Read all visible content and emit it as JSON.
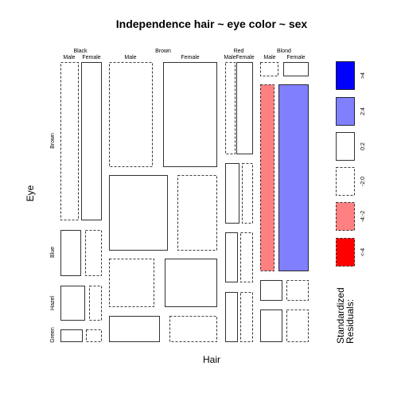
{
  "chart_data": {
    "type": "mosaic",
    "title": "Independence hair ~ eye color ~ sex",
    "xlabel": "Hair",
    "ylabel": "Eye",
    "hair_levels": [
      "Black",
      "Brown",
      "Red",
      "Blond"
    ],
    "sex_levels": [
      "Male",
      "Female"
    ],
    "eye_levels": [
      "Brown",
      "Blue",
      "Hazel",
      "Green"
    ],
    "residual_categories": [
      "<-4",
      "-4:-2",
      "-2:0",
      "0:2",
      "2:4",
      ">4"
    ],
    "residual_fills": {
      "<-4": "#ff0000",
      "-4:-2": "#ff8080",
      "-2:0": "#ffffff",
      "0:2": "#ffffff",
      "2:4": "#8080ff",
      ">4": "#0000ff"
    },
    "residual_dashed": {
      "<-4": true,
      "-4:-2": true,
      "-2:0": true,
      "0:2": false,
      "2:4": false,
      ">4": false
    },
    "legend": {
      "title_line1": "Standardized",
      "title_line2": "Residuals:",
      "ticks": [
        "<-4",
        "-4:-2",
        "-2:0",
        "0:2",
        "2:4",
        ">4"
      ],
      "placement": "right"
    },
    "cells": [
      {
        "hair": "Black",
        "sex": "Male",
        "eye": "Brown",
        "residual": "-2:0"
      },
      {
        "hair": "Black",
        "sex": "Female",
        "eye": "Brown",
        "residual": "0:2"
      },
      {
        "hair": "Black",
        "sex": "Male",
        "eye": "Blue",
        "residual": "0:2"
      },
      {
        "hair": "Black",
        "sex": "Female",
        "eye": "Blue",
        "residual": "-2:0"
      },
      {
        "hair": "Black",
        "sex": "Male",
        "eye": "Hazel",
        "residual": "0:2"
      },
      {
        "hair": "Black",
        "sex": "Female",
        "eye": "Hazel",
        "residual": "-2:0"
      },
      {
        "hair": "Black",
        "sex": "Male",
        "eye": "Green",
        "residual": "0:2"
      },
      {
        "hair": "Black",
        "sex": "Female",
        "eye": "Green",
        "residual": "-2:0"
      },
      {
        "hair": "Brown",
        "sex": "Male",
        "eye": "Brown",
        "residual": "-2:0"
      },
      {
        "hair": "Brown",
        "sex": "Female",
        "eye": "Brown",
        "residual": "0:2"
      },
      {
        "hair": "Brown",
        "sex": "Male",
        "eye": "Blue",
        "residual": "0:2"
      },
      {
        "hair": "Brown",
        "sex": "Female",
        "eye": "Blue",
        "residual": "-2:0"
      },
      {
        "hair": "Brown",
        "sex": "Male",
        "eye": "Hazel",
        "residual": "-2:0"
      },
      {
        "hair": "Brown",
        "sex": "Female",
        "eye": "Hazel",
        "residual": "0:2"
      },
      {
        "hair": "Brown",
        "sex": "Male",
        "eye": "Green",
        "residual": "0:2"
      },
      {
        "hair": "Brown",
        "sex": "Female",
        "eye": "Green",
        "residual": "-2:0"
      },
      {
        "hair": "Red",
        "sex": "Male",
        "eye": "Brown",
        "residual": "-2:0"
      },
      {
        "hair": "Red",
        "sex": "Female",
        "eye": "Brown",
        "residual": "0:2"
      },
      {
        "hair": "Red",
        "sex": "Male",
        "eye": "Blue",
        "residual": "0:2"
      },
      {
        "hair": "Red",
        "sex": "Female",
        "eye": "Blue",
        "residual": "-2:0"
      },
      {
        "hair": "Red",
        "sex": "Male",
        "eye": "Hazel",
        "residual": "0:2"
      },
      {
        "hair": "Red",
        "sex": "Female",
        "eye": "Hazel",
        "residual": "-2:0"
      },
      {
        "hair": "Red",
        "sex": "Male",
        "eye": "Green",
        "residual": "0:2"
      },
      {
        "hair": "Red",
        "sex": "Female",
        "eye": "Green",
        "residual": "-2:0"
      },
      {
        "hair": "Blond",
        "sex": "Male",
        "eye": "Brown",
        "residual": "-2:0"
      },
      {
        "hair": "Blond",
        "sex": "Female",
        "eye": "Brown",
        "residual": "0:2"
      },
      {
        "hair": "Blond",
        "sex": "Male",
        "eye": "Blue",
        "residual": "-4:-2"
      },
      {
        "hair": "Blond",
        "sex": "Female",
        "eye": "Blue",
        "residual": "2:4"
      },
      {
        "hair": "Blond",
        "sex": "Male",
        "eye": "Hazel",
        "residual": "0:2"
      },
      {
        "hair": "Blond",
        "sex": "Female",
        "eye": "Hazel",
        "residual": "-2:0"
      },
      {
        "hair": "Blond",
        "sex": "Male",
        "eye": "Green",
        "residual": "0:2"
      },
      {
        "hair": "Blond",
        "sex": "Female",
        "eye": "Green",
        "residual": "-2:0"
      }
    ]
  }
}
